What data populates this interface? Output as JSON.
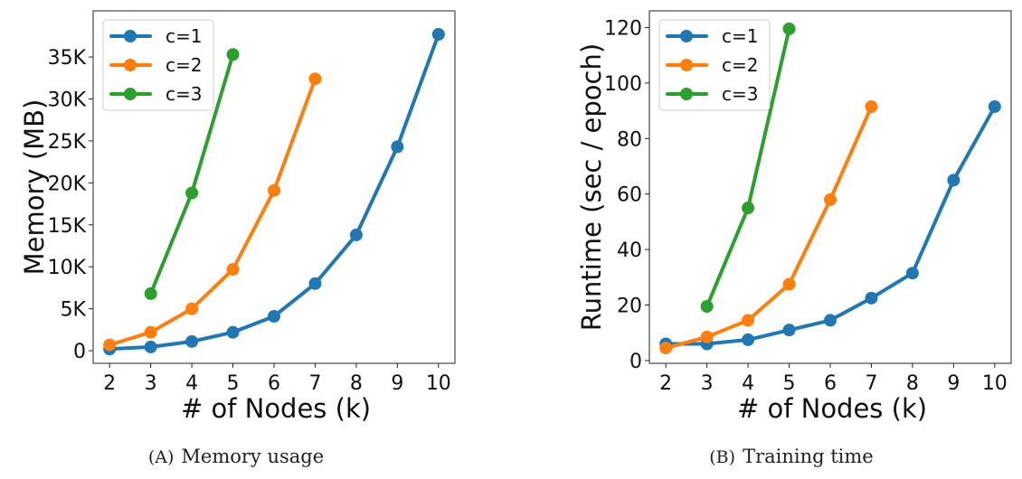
{
  "colors": {
    "c1": "#1f77b4",
    "c2": "#ff7f0e",
    "c3": "#2ca02c"
  },
  "chart_data": [
    {
      "type": "line",
      "caption_prefix": "(A)",
      "caption": "Memory usage",
      "xlabel": "# of Nodes (k)",
      "ylabel": "Memory (MB)",
      "xlim": [
        1.6,
        10.4
      ],
      "ylim": [
        -1500,
        40500
      ],
      "xticks": [
        2,
        3,
        4,
        5,
        6,
        7,
        8,
        9,
        10
      ],
      "xtick_labels": [
        "2",
        "3",
        "4",
        "5",
        "6",
        "7",
        "8",
        "9",
        "10"
      ],
      "yticks": [
        0,
        5000,
        10000,
        15000,
        20000,
        25000,
        30000,
        35000
      ],
      "ytick_labels": [
        "0",
        "5K",
        "10K",
        "15K",
        "20K",
        "25K",
        "30K",
        "35K"
      ],
      "grid": false,
      "legend_position": "top-left",
      "series": [
        {
          "name": "c=1",
          "x": [
            2,
            3,
            4,
            5,
            6,
            7,
            8,
            9,
            10
          ],
          "values": [
            200,
            450,
            1100,
            2200,
            4100,
            8000,
            13800,
            24300,
            37700
          ]
        },
        {
          "name": "c=2",
          "x": [
            2,
            3,
            4,
            5,
            6,
            7
          ],
          "values": [
            700,
            2200,
            5000,
            9700,
            19100,
            32400
          ]
        },
        {
          "name": "c=3",
          "x": [
            3,
            4,
            5
          ],
          "values": [
            6800,
            18800,
            35300
          ]
        }
      ]
    },
    {
      "type": "line",
      "caption_prefix": "(B)",
      "caption": "Training time",
      "xlabel": "# of Nodes (k)",
      "ylabel": "Runtime (sec / epoch)",
      "xlim": [
        1.6,
        10.4
      ],
      "ylim": [
        -1,
        126
      ],
      "xticks": [
        2,
        3,
        4,
        5,
        6,
        7,
        8,
        9,
        10
      ],
      "xtick_labels": [
        "2",
        "3",
        "4",
        "5",
        "6",
        "7",
        "8",
        "9",
        "10"
      ],
      "yticks": [
        0,
        20,
        40,
        60,
        80,
        100,
        120
      ],
      "ytick_labels": [
        "0",
        "20",
        "40",
        "60",
        "80",
        "100",
        "120"
      ],
      "grid": false,
      "legend_position": "top-left",
      "series": [
        {
          "name": "c=1",
          "x": [
            2,
            3,
            4,
            5,
            6,
            7,
            8,
            9,
            10
          ],
          "values": [
            6,
            6,
            7.5,
            11,
            14.5,
            22.5,
            31.5,
            65,
            91.5
          ]
        },
        {
          "name": "c=2",
          "x": [
            2,
            3,
            4,
            5,
            6,
            7
          ],
          "values": [
            4.5,
            8.5,
            14.5,
            27.5,
            58,
            91.5
          ]
        },
        {
          "name": "c=3",
          "x": [
            3,
            4,
            5
          ],
          "values": [
            19.5,
            55,
            119.5
          ]
        }
      ]
    }
  ]
}
